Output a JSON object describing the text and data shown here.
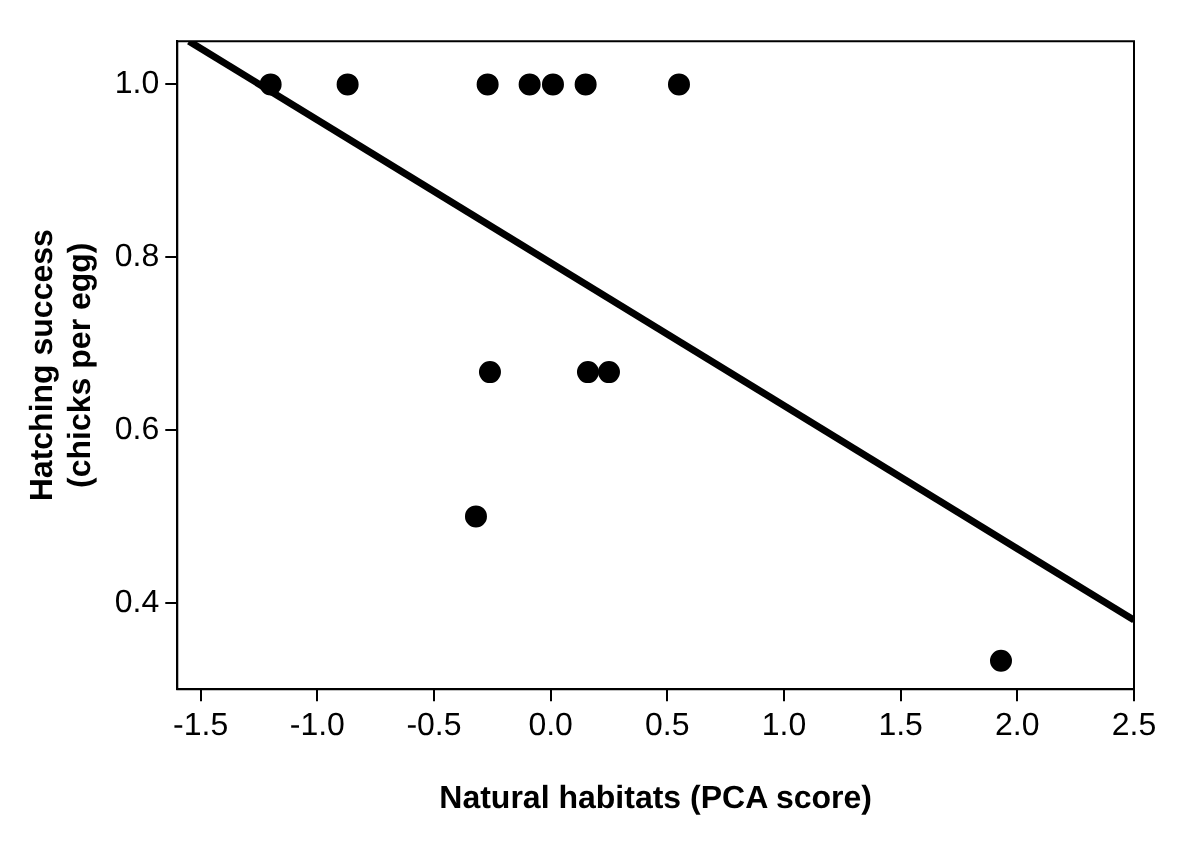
{
  "chart_data": {
    "type": "scatter",
    "xlabel": "Natural habitats (PCA score)",
    "ylabel": "Hatching success\n(chicks per egg)",
    "xlim": [
      -1.6,
      2.5
    ],
    "xticks": [
      {
        "value": -1.5,
        "label": "-1.5"
      },
      {
        "value": -1,
        "label": "-1.0"
      },
      {
        "value": -0.5,
        "label": "-0.5"
      },
      {
        "value": 0,
        "label": "0.0"
      },
      {
        "value": 0.5,
        "label": "0.5"
      },
      {
        "value": 1,
        "label": "1.0"
      },
      {
        "value": 1.5,
        "label": "1.5"
      },
      {
        "value": 2,
        "label": "2.0"
      },
      {
        "value": 2.5,
        "label": "2.5"
      }
    ],
    "ylim": [
      0.3,
      1.05
    ],
    "yticks": [
      {
        "value": 0.4,
        "label": "0.4"
      },
      {
        "value": 0.6,
        "label": "0.6"
      },
      {
        "value": 0.8,
        "label": "0.8"
      },
      {
        "value": 1,
        "label": "1.0"
      }
    ],
    "grid": false,
    "marker": "circle",
    "series": [
      {
        "color": "#000000",
        "x": [
          -1.2,
          -0.87,
          -0.27,
          -0.09,
          0.01,
          0.15,
          0.55,
          -0.26,
          -0.32,
          0.16,
          0.25,
          1.93
        ],
        "values": [
          1,
          1,
          1,
          1,
          1,
          1,
          1,
          0.667,
          0.5,
          0.667,
          0.667,
          0.333
        ]
      },
      {
        "type": "line",
        "color": "#000000",
        "x": [
          -1.55,
          2.5
        ],
        "values": [
          1.05,
          0.38
        ],
        "marker": "none",
        "line_style": "solid"
      }
    ]
  }
}
